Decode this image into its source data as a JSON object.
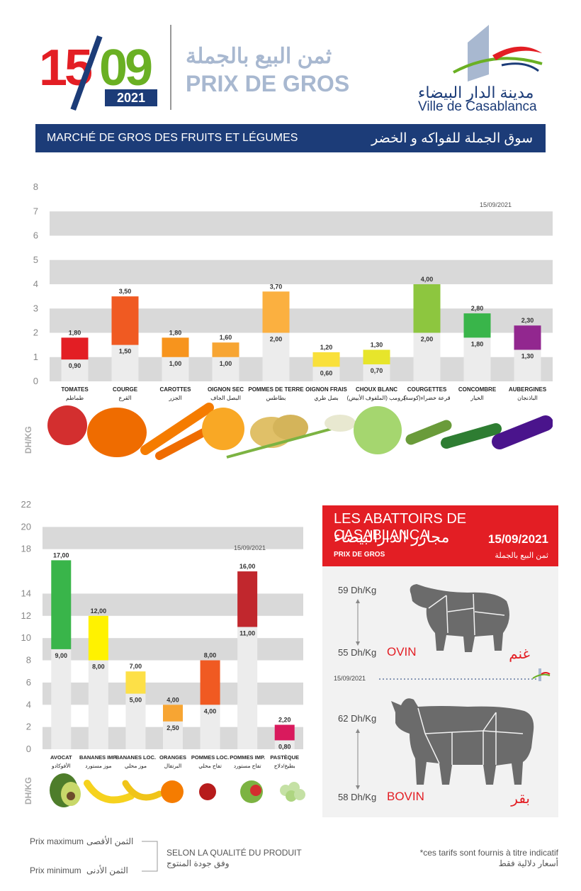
{
  "header": {
    "day": "15",
    "month": "09",
    "year": "2021",
    "title_ar": "ثمن البيع بالجملة",
    "title_fr": "PRIX DE GROS",
    "logo_ar": "مدينة الدار البيضاء",
    "logo_fr": "Ville de Casablanca"
  },
  "banner": {
    "fr": "MARCHÉ DE GROS DES FRUITS ET LÉGUMES",
    "ar": "سوق الجملة للفواكه و الخضر"
  },
  "colors": {
    "brand_blue": "#1c3c78",
    "red": "#e31e24",
    "green": "#6ab023"
  },
  "chart_data": [
    {
      "type": "bar",
      "date_label": "15/09/2021",
      "ylabel": "DH/KG",
      "ylim": [
        0,
        8
      ],
      "yticks": [
        0,
        1,
        2,
        3,
        4,
        5,
        6,
        7,
        8
      ],
      "categories": [
        {
          "fr": "TOMATES",
          "ar": "طماطم"
        },
        {
          "fr": "COURGE",
          "ar": "القرع"
        },
        {
          "fr": "CAROTTES",
          "ar": "الجزر"
        },
        {
          "fr": "OIGNON SEC",
          "ar": "البصل الجاف"
        },
        {
          "fr": "POMMES DE TERRE",
          "ar": "بطاطس"
        },
        {
          "fr": "OIGNON FRAIS",
          "ar": "بصل طري"
        },
        {
          "fr": "CHOUX BLANC",
          "ar": "كرومب (الملفوف الأبيض)"
        },
        {
          "fr": "COURGETTES",
          "ar": "قرعة خضراء(كوسة)"
        },
        {
          "fr": "CONCOMBRE",
          "ar": "الخيار"
        },
        {
          "fr": "AUBERGINES",
          "ar": "الباذنجان"
        }
      ],
      "series": [
        {
          "name": "Prix minimum",
          "values": [
            0.9,
            1.5,
            1.0,
            1.0,
            2.0,
            0.6,
            0.7,
            2.0,
            1.8,
            1.3
          ]
        },
        {
          "name": "Prix maximum",
          "values": [
            1.8,
            3.5,
            1.8,
            1.6,
            3.7,
            1.2,
            1.3,
            4.0,
            2.8,
            2.3
          ]
        }
      ],
      "value_labels_min": [
        "0,90",
        "1,50",
        "1,00",
        "1,00",
        "2,00",
        "0,60",
        "0,70",
        "2,00",
        "1,80",
        "1,30"
      ],
      "value_labels_max": [
        "1,80",
        "3,50",
        "1,80",
        "1,60",
        "3,70",
        "1,20",
        "1,30",
        "4,00",
        "2,80",
        "2,30"
      ],
      "bar_colors": [
        "#e31e24",
        "#f05a22",
        "#f7941d",
        "#f7a533",
        "#fbb040",
        "#f9e03b",
        "#e7e52b",
        "#8dc63f",
        "#39b54a",
        "#92278f"
      ]
    },
    {
      "type": "bar",
      "date_label": "15/09/2021",
      "ylabel": "DH/KG",
      "ylim": [
        0,
        22
      ],
      "yticks": [
        0,
        2,
        4,
        6,
        8,
        10,
        12,
        14,
        18,
        20,
        22
      ],
      "categories": [
        {
          "fr": "AVOCAT",
          "ar": "الأفوكادو"
        },
        {
          "fr": "BANANES IMP.",
          "ar": "موز مستورد"
        },
        {
          "fr": "BANANES LOC.",
          "ar": "موز محلي"
        },
        {
          "fr": "ORANGES",
          "ar": "البرتقال"
        },
        {
          "fr": "POMMES LOC.",
          "ar": "تفاح محلي"
        },
        {
          "fr": "POMMES IMP.",
          "ar": "تفاح مستورد"
        },
        {
          "fr": "PASTÈQUE",
          "ar": "بطيخ/دلاح"
        }
      ],
      "series": [
        {
          "name": "Prix minimum",
          "values": [
            9.0,
            8.0,
            5.0,
            2.5,
            4.0,
            11.0,
            0.8
          ]
        },
        {
          "name": "Prix maximum",
          "values": [
            17.0,
            12.0,
            7.0,
            4.0,
            8.0,
            16.0,
            2.2
          ]
        }
      ],
      "value_labels_min": [
        "9,00",
        "8,00",
        "5,00",
        "2,50",
        "4,00",
        "11,00",
        "0,80"
      ],
      "value_labels_max": [
        "17,00",
        "12,00",
        "7,00",
        "4,00",
        "8,00",
        "16,00",
        "2,20"
      ],
      "bar_colors": [
        "#39b54a",
        "#fff200",
        "#fde047",
        "#f7a533",
        "#f05a22",
        "#c1272d",
        "#d91a5d"
      ]
    }
  ],
  "abattoirs": {
    "title_fr": "LES ABATTOIRS DE CASABLANCA",
    "title_ar": "مجازر الدارالبيضاء",
    "date": "15/09/2021",
    "prix_fr": "PRIX DE GROS",
    "prix_ar": "ثمن البيع بالجملة",
    "mid_date": "15/09/2021",
    "ovin": {
      "fr": "OVIN",
      "ar": "غنم",
      "max": "59 Dh/Kg",
      "min": "55 Dh/Kg"
    },
    "bovin": {
      "fr": "BOVIN",
      "ar": "بقر",
      "max": "62 Dh/Kg",
      "min": "58 Dh/Kg"
    }
  },
  "legend": {
    "max_fr": "Prix maximum",
    "max_ar": "الثمن الأقصى",
    "min_fr": "Prix minimum",
    "min_ar": "الثمن الأدنى",
    "quality_fr": "SELON LA QUALITÉ DU PRODUIT",
    "quality_ar": "وفق جودة المنتوج",
    "note_fr": "*ces tarifs sont fournis à titre indicatif",
    "note_ar": "أسعار دلالية فقط"
  },
  "icons": [
    "casablanca-logo",
    "sheep-icon",
    "cow-icon",
    "vegetables-image",
    "fruits-image"
  ]
}
